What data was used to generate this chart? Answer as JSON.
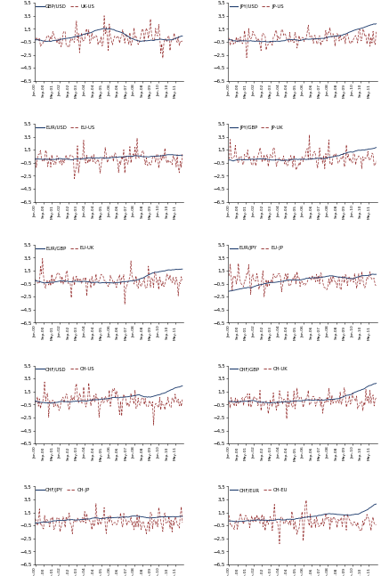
{
  "panels": [
    {
      "solid_label": "GBP/USD",
      "dashed_label": "UK-US"
    },
    {
      "solid_label": "JPY/USD",
      "dashed_label": "JP-US"
    },
    {
      "solid_label": "EUR/USD",
      "dashed_label": "EU-US"
    },
    {
      "solid_label": "JPY/GBP",
      "dashed_label": "JP-UK"
    },
    {
      "solid_label": "EUR/GBP",
      "dashed_label": "EU-UK"
    },
    {
      "solid_label": "EUR/JPY",
      "dashed_label": "EU-JP"
    },
    {
      "solid_label": "CHF/USD",
      "dashed_label": "CH-US"
    },
    {
      "solid_label": "CHF/GBP",
      "dashed_label": "CH-UK"
    },
    {
      "solid_label": "CHF/JPY",
      "dashed_label": "CH-JP"
    },
    {
      "solid_label": "CHF/EUR",
      "dashed_label": "CH-EU"
    }
  ],
  "ylim": [
    -6.5,
    5.5
  ],
  "yticks": [
    -6.5,
    -4.5,
    -2.5,
    -0.5,
    1.5,
    3.5,
    5.5
  ],
  "ytick_labels": [
    "6,5",
    "4,5",
    "2,5",
    "0,5",
    "1,5",
    "3,5",
    "5,5"
  ],
  "solid_color": "#1f3d6e",
  "dashed_color": "#8b1a1a",
  "n_points": 144,
  "tick_positions": [
    0,
    8,
    16,
    24,
    32,
    40,
    48,
    56,
    64,
    72,
    80,
    88,
    96,
    104,
    112,
    120,
    128,
    136
  ],
  "tick_labels": [
    "Jan-00",
    "Sep-00",
    "May-01",
    "Jan-02",
    "Sep-02",
    "May-03",
    "Jan-04",
    "Sep-04",
    "May-05",
    "Jan-06",
    "Sep-06",
    "May-07",
    "Jan-08",
    "Sep-08",
    "May-09",
    "Jan-10",
    "Sep-10",
    "May-11"
  ]
}
